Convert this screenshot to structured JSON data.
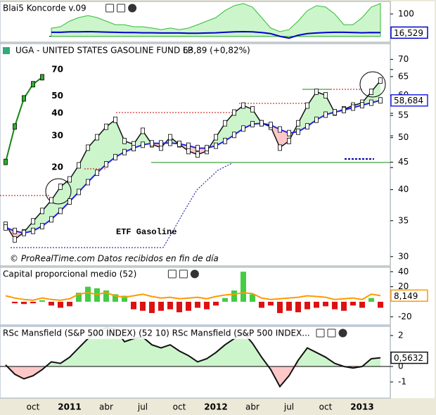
{
  "chart_data": [
    {
      "type": "area-line",
      "title": "Blai5 Koncorde v.09",
      "ylim": [
        -20,
        150
      ],
      "yticks": [
        100
      ],
      "series": [
        {
          "color": "#33bb33",
          "fill": "#ccf5cc",
          "values": [
            null,
            null,
            null,
            null,
            null,
            36.7,
            43,
            68,
            84,
            93,
            84,
            68,
            52,
            52,
            43,
            43,
            37,
            30,
            37,
            30,
            37,
            52,
            68,
            84,
            115,
            137,
            147,
            131,
            84,
            37,
            21,
            30,
            68,
            115,
            137,
            131,
            100,
            52,
            52,
            84,
            131,
            147
          ]
        },
        {
          "color": "#0000cc",
          "values": [
            null,
            null,
            null,
            null,
            null,
            18,
            18,
            20,
            20,
            21,
            20,
            19,
            18,
            17,
            17,
            16,
            16,
            15,
            15,
            15,
            14,
            14,
            15,
            16,
            18,
            20,
            21,
            20,
            17,
            12,
            0,
            -8,
            5,
            12,
            15,
            17,
            18,
            18,
            17,
            16,
            17,
            16.529
          ],
          "last_label": "16,529"
        }
      ]
    },
    {
      "type": "line",
      "title": "UGA - UNITED STATES GASOLINE FUND LP",
      "subtitle": "63,89 (+0,82%)",
      "log_scale": true,
      "ylim": [
        29,
        74
      ],
      "yticks": [
        30,
        35,
        40,
        45,
        50,
        55,
        60,
        65,
        70
      ],
      "y2lim": [
        5.8,
        94
      ],
      "y2ticks": [
        20,
        30,
        40,
        50,
        70
      ],
      "annotation": "ETF Gasoline",
      "watermark": "© ProRealTime.com Datos recibidos en fin de día",
      "fill_above": "#ccf5cc",
      "fill_below": "#ffc8c8",
      "series": [
        {
          "color": "#111111",
          "values": [
            34.4,
            32.3,
            33.3,
            34.9,
            36.5,
            38.2,
            40.5,
            41.8,
            44.4,
            47.9,
            50.1,
            52.4,
            54.0,
            49.3,
            48.6,
            51.5,
            48.6,
            47.9,
            50.1,
            48.6,
            47.2,
            46.5,
            47.2,
            50.1,
            53.2,
            55.7,
            57.4,
            56.5,
            53.2,
            52.4,
            47.9,
            49.3,
            53.2,
            57.4,
            60.9,
            60.0,
            55.7,
            56.5,
            57.4,
            58.1,
            60.9,
            63.89
          ]
        },
        {
          "color": "#2222ee",
          "values": [
            34.0,
            33.5,
            33.2,
            33.5,
            34.2,
            35.2,
            36.5,
            38.0,
            39.6,
            41.3,
            43.0,
            44.6,
            46.0,
            47.0,
            47.8,
            48.5,
            48.8,
            48.8,
            48.9,
            48.7,
            48.3,
            47.8,
            47.8,
            48.3,
            49.3,
            50.6,
            52.0,
            53.0,
            53.2,
            52.8,
            51.8,
            51.0,
            51.3,
            52.5,
            54.0,
            55.2,
            55.8,
            56.3,
            56.9,
            57.5,
            58.1,
            58.684
          ],
          "last_label": "58,684"
        },
        {
          "axis": "y2",
          "color": "#118811",
          "values": [
            21.5,
            33.8,
            48.4,
            58,
            63.4,
            null,
            null,
            null,
            null,
            null,
            null,
            null,
            null,
            null,
            null,
            null,
            null,
            null,
            null,
            null,
            null,
            null,
            null,
            null,
            null,
            null,
            null,
            null,
            null,
            null,
            null,
            null,
            null,
            null,
            null,
            null,
            null,
            null,
            null,
            null,
            null,
            null
          ]
        }
      ]
    },
    {
      "type": "bar-line",
      "title": "Capital proporcional medio (52)",
      "ylim": [
        -29,
        44
      ],
      "yticks": [
        40,
        20,
        -20
      ],
      "series": [
        {
          "color_positive": "#44cc44",
          "color_negative": "#dd1111",
          "values": [
            0,
            -2,
            -3,
            -2,
            2,
            -5,
            -8,
            -6,
            12,
            20,
            18,
            15,
            10,
            8,
            -10,
            -12,
            -15,
            -12,
            -10,
            -14,
            -12,
            -8,
            -10,
            -5,
            5,
            15,
            40,
            10,
            -8,
            -5,
            -15,
            -12,
            -14,
            -10,
            -8,
            -6,
            -10,
            -12,
            -5,
            -8,
            5,
            -8
          ]
        },
        {
          "color": "#ff9900",
          "values": [
            8,
            5,
            3,
            2,
            5,
            3,
            2,
            4,
            10,
            12,
            10,
            12,
            8,
            6,
            8,
            10,
            7,
            5,
            6,
            4,
            5,
            6,
            4,
            7,
            9,
            10,
            12,
            11,
            5,
            3,
            4,
            5,
            6,
            8,
            7,
            6,
            3,
            4,
            5,
            3,
            10,
            8.149
          ],
          "last_label": "8,149"
        }
      ]
    },
    {
      "type": "area",
      "title": "RSc Mansfield (S&P 500 INDEX) (52 10) RSc Mansfield (S&P 500 INDEX...",
      "ylim": [
        -2,
        2.5
      ],
      "yticks": [
        2,
        0,
        -1
      ],
      "categories": [
        null,
        null,
        null,
        "oct",
        null,
        null,
        null,
        "2011",
        null,
        null,
        null,
        "abr",
        null,
        null,
        null,
        "jul",
        null,
        null,
        null,
        "oct",
        null,
        null,
        null,
        "2012",
        null,
        null,
        null,
        "abr",
        null,
        null,
        null,
        "jul",
        null,
        null,
        null,
        "oct",
        null,
        null,
        null,
        "2013",
        null,
        null
      ],
      "series": [
        {
          "color": "#111111",
          "fill_positive": "#ccf5cc",
          "fill_negative": "#ffc8c8",
          "values": [
            0.1,
            -0.5,
            -0.8,
            -0.6,
            -0.2,
            0.3,
            0.2,
            0.6,
            1.2,
            1.8,
            2.2,
            2.5,
            2.4,
            1.6,
            1.8,
            1.9,
            1.4,
            1.2,
            1.4,
            1.0,
            0.7,
            0.3,
            0.5,
            0.9,
            1.4,
            1.8,
            2.2,
            1.5,
            0.6,
            -0.2,
            -1.3,
            -0.6,
            0.4,
            1.2,
            0.9,
            0.6,
            0.2,
            0.0,
            -0.1,
            0.0,
            0.5,
            0.5632
          ],
          "last_label": "0,5632"
        }
      ]
    }
  ]
}
